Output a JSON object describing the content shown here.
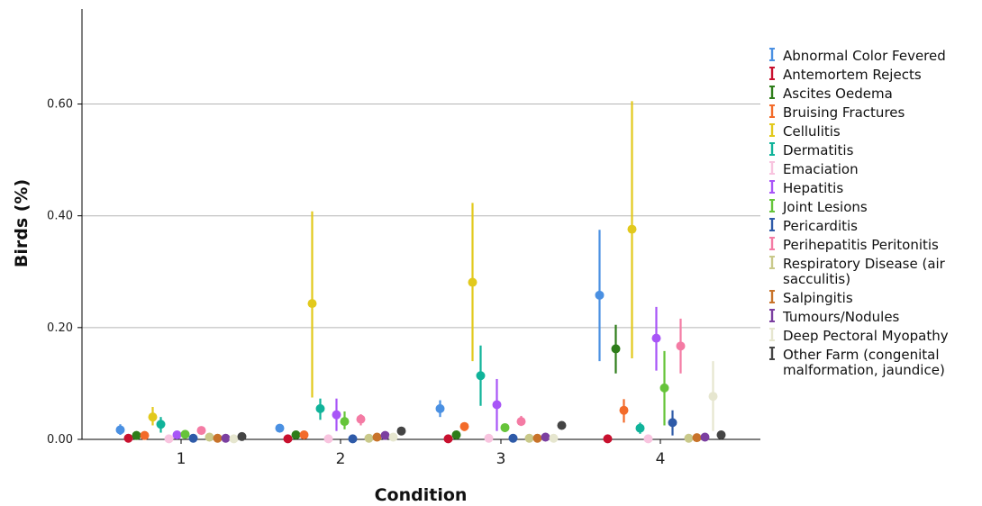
{
  "chart_data": {
    "type": "scatter",
    "subtype": "error-bar",
    "title": "",
    "xlabel": "Condition",
    "ylabel": "Birds (%)",
    "categories": [
      "1",
      "2",
      "3",
      "4"
    ],
    "ylim": [
      0,
      0.77
    ],
    "yticks": [
      0,
      0.2,
      0.4,
      0.6
    ],
    "ytick_labels": [
      "0.00",
      "0.20",
      "0.40",
      "0.60"
    ],
    "grid": "horizontal",
    "legend_position": "right",
    "series": [
      {
        "name": "Abnormal Color Fevered",
        "color": "#4a90e2",
        "values": [
          0.017,
          0.02,
          0.055,
          0.258
        ],
        "lower": [
          0.008,
          0.013,
          0.04,
          0.14
        ],
        "upper": [
          0.027,
          0.027,
          0.07,
          0.375
        ]
      },
      {
        "name": "Antemortem Rejects",
        "color": "#c8102e",
        "values": [
          0.002,
          0.001,
          0.001,
          0.001
        ],
        "lower": [
          0.0,
          0.0,
          0.0,
          0.0
        ],
        "upper": [
          0.005,
          0.003,
          0.003,
          0.002
        ]
      },
      {
        "name": "Ascites Oedema",
        "color": "#2e7d1a",
        "values": [
          0.007,
          0.008,
          0.008,
          0.162
        ],
        "lower": [
          0.002,
          0.003,
          0.003,
          0.118
        ],
        "upper": [
          0.012,
          0.013,
          0.013,
          0.205
        ]
      },
      {
        "name": "Bruising Fractures",
        "color": "#f36b2a",
        "values": [
          0.007,
          0.008,
          0.023,
          0.052
        ],
        "lower": [
          0.002,
          0.003,
          0.015,
          0.03
        ],
        "upper": [
          0.012,
          0.013,
          0.03,
          0.072
        ]
      },
      {
        "name": "Cellulitis",
        "color": "#e2c91c",
        "values": [
          0.04,
          0.243,
          0.281,
          0.376
        ],
        "lower": [
          0.025,
          0.075,
          0.14,
          0.145
        ],
        "upper": [
          0.058,
          0.408,
          0.423,
          0.605
        ]
      },
      {
        "name": "Dermatitis",
        "color": "#10b39a",
        "values": [
          0.027,
          0.055,
          0.114,
          0.02
        ],
        "lower": [
          0.012,
          0.035,
          0.06,
          0.01
        ],
        "upper": [
          0.04,
          0.073,
          0.168,
          0.03
        ]
      },
      {
        "name": "Emaciation",
        "color": "#f8c4df",
        "values": [
          0.001,
          0.001,
          0.002,
          0.001
        ],
        "lower": [
          0.0,
          0.0,
          0.0,
          0.0
        ],
        "upper": [
          0.004,
          0.003,
          0.004,
          0.003
        ]
      },
      {
        "name": "Hepatitis",
        "color": "#a855f7",
        "values": [
          0.008,
          0.044,
          0.062,
          0.181
        ],
        "lower": [
          0.002,
          0.015,
          0.015,
          0.123
        ],
        "upper": [
          0.014,
          0.073,
          0.108,
          0.237
        ]
      },
      {
        "name": "Joint Lesions",
        "color": "#66c43a",
        "values": [
          0.009,
          0.032,
          0.021,
          0.092
        ],
        "lower": [
          0.003,
          0.018,
          0.013,
          0.025
        ],
        "upper": [
          0.015,
          0.05,
          0.028,
          0.158
        ]
      },
      {
        "name": "Pericarditis",
        "color": "#2e5aa8",
        "values": [
          0.002,
          0.001,
          0.002,
          0.03
        ],
        "lower": [
          0.0,
          0.0,
          0.0,
          0.007
        ],
        "upper": [
          0.005,
          0.003,
          0.004,
          0.052
        ]
      },
      {
        "name": "Perihepatitis Peritonitis",
        "color": "#f47ba4",
        "values": [
          0.016,
          0.036,
          0.032,
          0.167
        ],
        "lower": [
          0.009,
          0.025,
          0.024,
          0.118
        ],
        "upper": [
          0.023,
          0.045,
          0.042,
          0.216
        ]
      },
      {
        "name": "Respiratory Disease (air sacculitis)",
        "color": "#c9c98a",
        "values": [
          0.004,
          0.002,
          0.002,
          0.002
        ],
        "lower": [
          0.0,
          0.0,
          0.0,
          0.0
        ],
        "upper": [
          0.008,
          0.004,
          0.004,
          0.004
        ]
      },
      {
        "name": "Salpingitis",
        "color": "#c8732a",
        "values": [
          0.002,
          0.004,
          0.002,
          0.003
        ],
        "lower": [
          0.0,
          0.001,
          0.0,
          0.0
        ],
        "upper": [
          0.005,
          0.007,
          0.004,
          0.006
        ]
      },
      {
        "name": "Tumours/Nodules",
        "color": "#7b3fa0",
        "values": [
          0.002,
          0.007,
          0.004,
          0.004
        ],
        "lower": [
          0.0,
          0.002,
          0.001,
          0.001
        ],
        "upper": [
          0.005,
          0.012,
          0.007,
          0.007
        ]
      },
      {
        "name": "Deep Pectoral Myopathy",
        "color": "#e6e6cf",
        "values": [
          0.001,
          0.004,
          0.002,
          0.077
        ],
        "lower": [
          0.0,
          0.001,
          0.0,
          0.015
        ],
        "upper": [
          0.003,
          0.007,
          0.004,
          0.14
        ]
      },
      {
        "name": "Other Farm (congenital malformation, jaundice)",
        "color": "#444444",
        "values": [
          0.005,
          0.015,
          0.025,
          0.008
        ],
        "lower": [
          0.002,
          0.01,
          0.018,
          0.004
        ],
        "upper": [
          0.008,
          0.02,
          0.032,
          0.012
        ]
      }
    ],
    "legend_lines": [
      [
        "Abnormal Color Fevered"
      ],
      [
        "Antemortem Rejects"
      ],
      [
        "Ascites Oedema"
      ],
      [
        "Bruising Fractures"
      ],
      [
        "Cellulitis"
      ],
      [
        "Dermatitis"
      ],
      [
        "Emaciation"
      ],
      [
        "Hepatitis"
      ],
      [
        "Joint Lesions"
      ],
      [
        "Pericarditis"
      ],
      [
        "Perihepatitis Peritonitis"
      ],
      [
        "Respiratory Disease (air",
        "sacculitis)"
      ],
      [
        "Salpingitis"
      ],
      [
        "Tumours/Nodules"
      ],
      [
        "Deep Pectoral Myopathy"
      ],
      [
        "Other Farm (congenital",
        "malformation, jaundice)"
      ]
    ]
  }
}
